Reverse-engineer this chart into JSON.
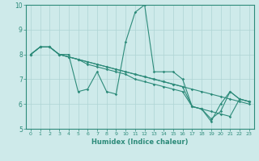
{
  "xlabel": "Humidex (Indice chaleur)",
  "bg_color": "#ceeaea",
  "grid_color": "#aed4d4",
  "line_color": "#2d8b7a",
  "xlim": [
    -0.5,
    23.5
  ],
  "ylim": [
    5,
    10
  ],
  "yticks": [
    5,
    6,
    7,
    8,
    9,
    10
  ],
  "xtick_labels": [
    "0",
    "1",
    "2",
    "3",
    "4",
    "5",
    "6",
    "7",
    "8",
    "9",
    "10",
    "11",
    "12",
    "13",
    "14",
    "15",
    "16",
    "17",
    "18",
    "19",
    "20",
    "21",
    "22",
    "23"
  ],
  "lines": [
    [
      8.0,
      8.3,
      8.3,
      8.0,
      8.0,
      6.5,
      6.6,
      7.3,
      6.5,
      6.4,
      8.5,
      9.7,
      10.0,
      7.3,
      7.3,
      7.3,
      7.0,
      5.9,
      5.8,
      5.3,
      6.0,
      6.5,
      6.2,
      6.1
    ],
    [
      8.0,
      8.3,
      8.3,
      8.0,
      7.9,
      7.8,
      7.7,
      7.6,
      7.5,
      7.4,
      7.3,
      7.2,
      7.1,
      7.0,
      6.9,
      6.8,
      6.7,
      6.6,
      6.5,
      6.4,
      6.3,
      6.2,
      6.1,
      6.0
    ],
    [
      8.0,
      8.3,
      8.3,
      8.0,
      7.9,
      7.8,
      7.6,
      7.5,
      7.4,
      7.3,
      7.2,
      7.0,
      6.9,
      6.8,
      6.7,
      6.6,
      6.5,
      5.9,
      5.8,
      5.7,
      5.6,
      5.5,
      6.2,
      6.1
    ],
    [
      8.0,
      8.3,
      8.3,
      8.0,
      7.9,
      7.8,
      7.7,
      7.6,
      7.5,
      7.4,
      7.3,
      7.2,
      7.1,
      7.0,
      6.9,
      6.8,
      6.7,
      5.9,
      5.8,
      5.4,
      5.7,
      6.5,
      6.2,
      6.1
    ]
  ]
}
